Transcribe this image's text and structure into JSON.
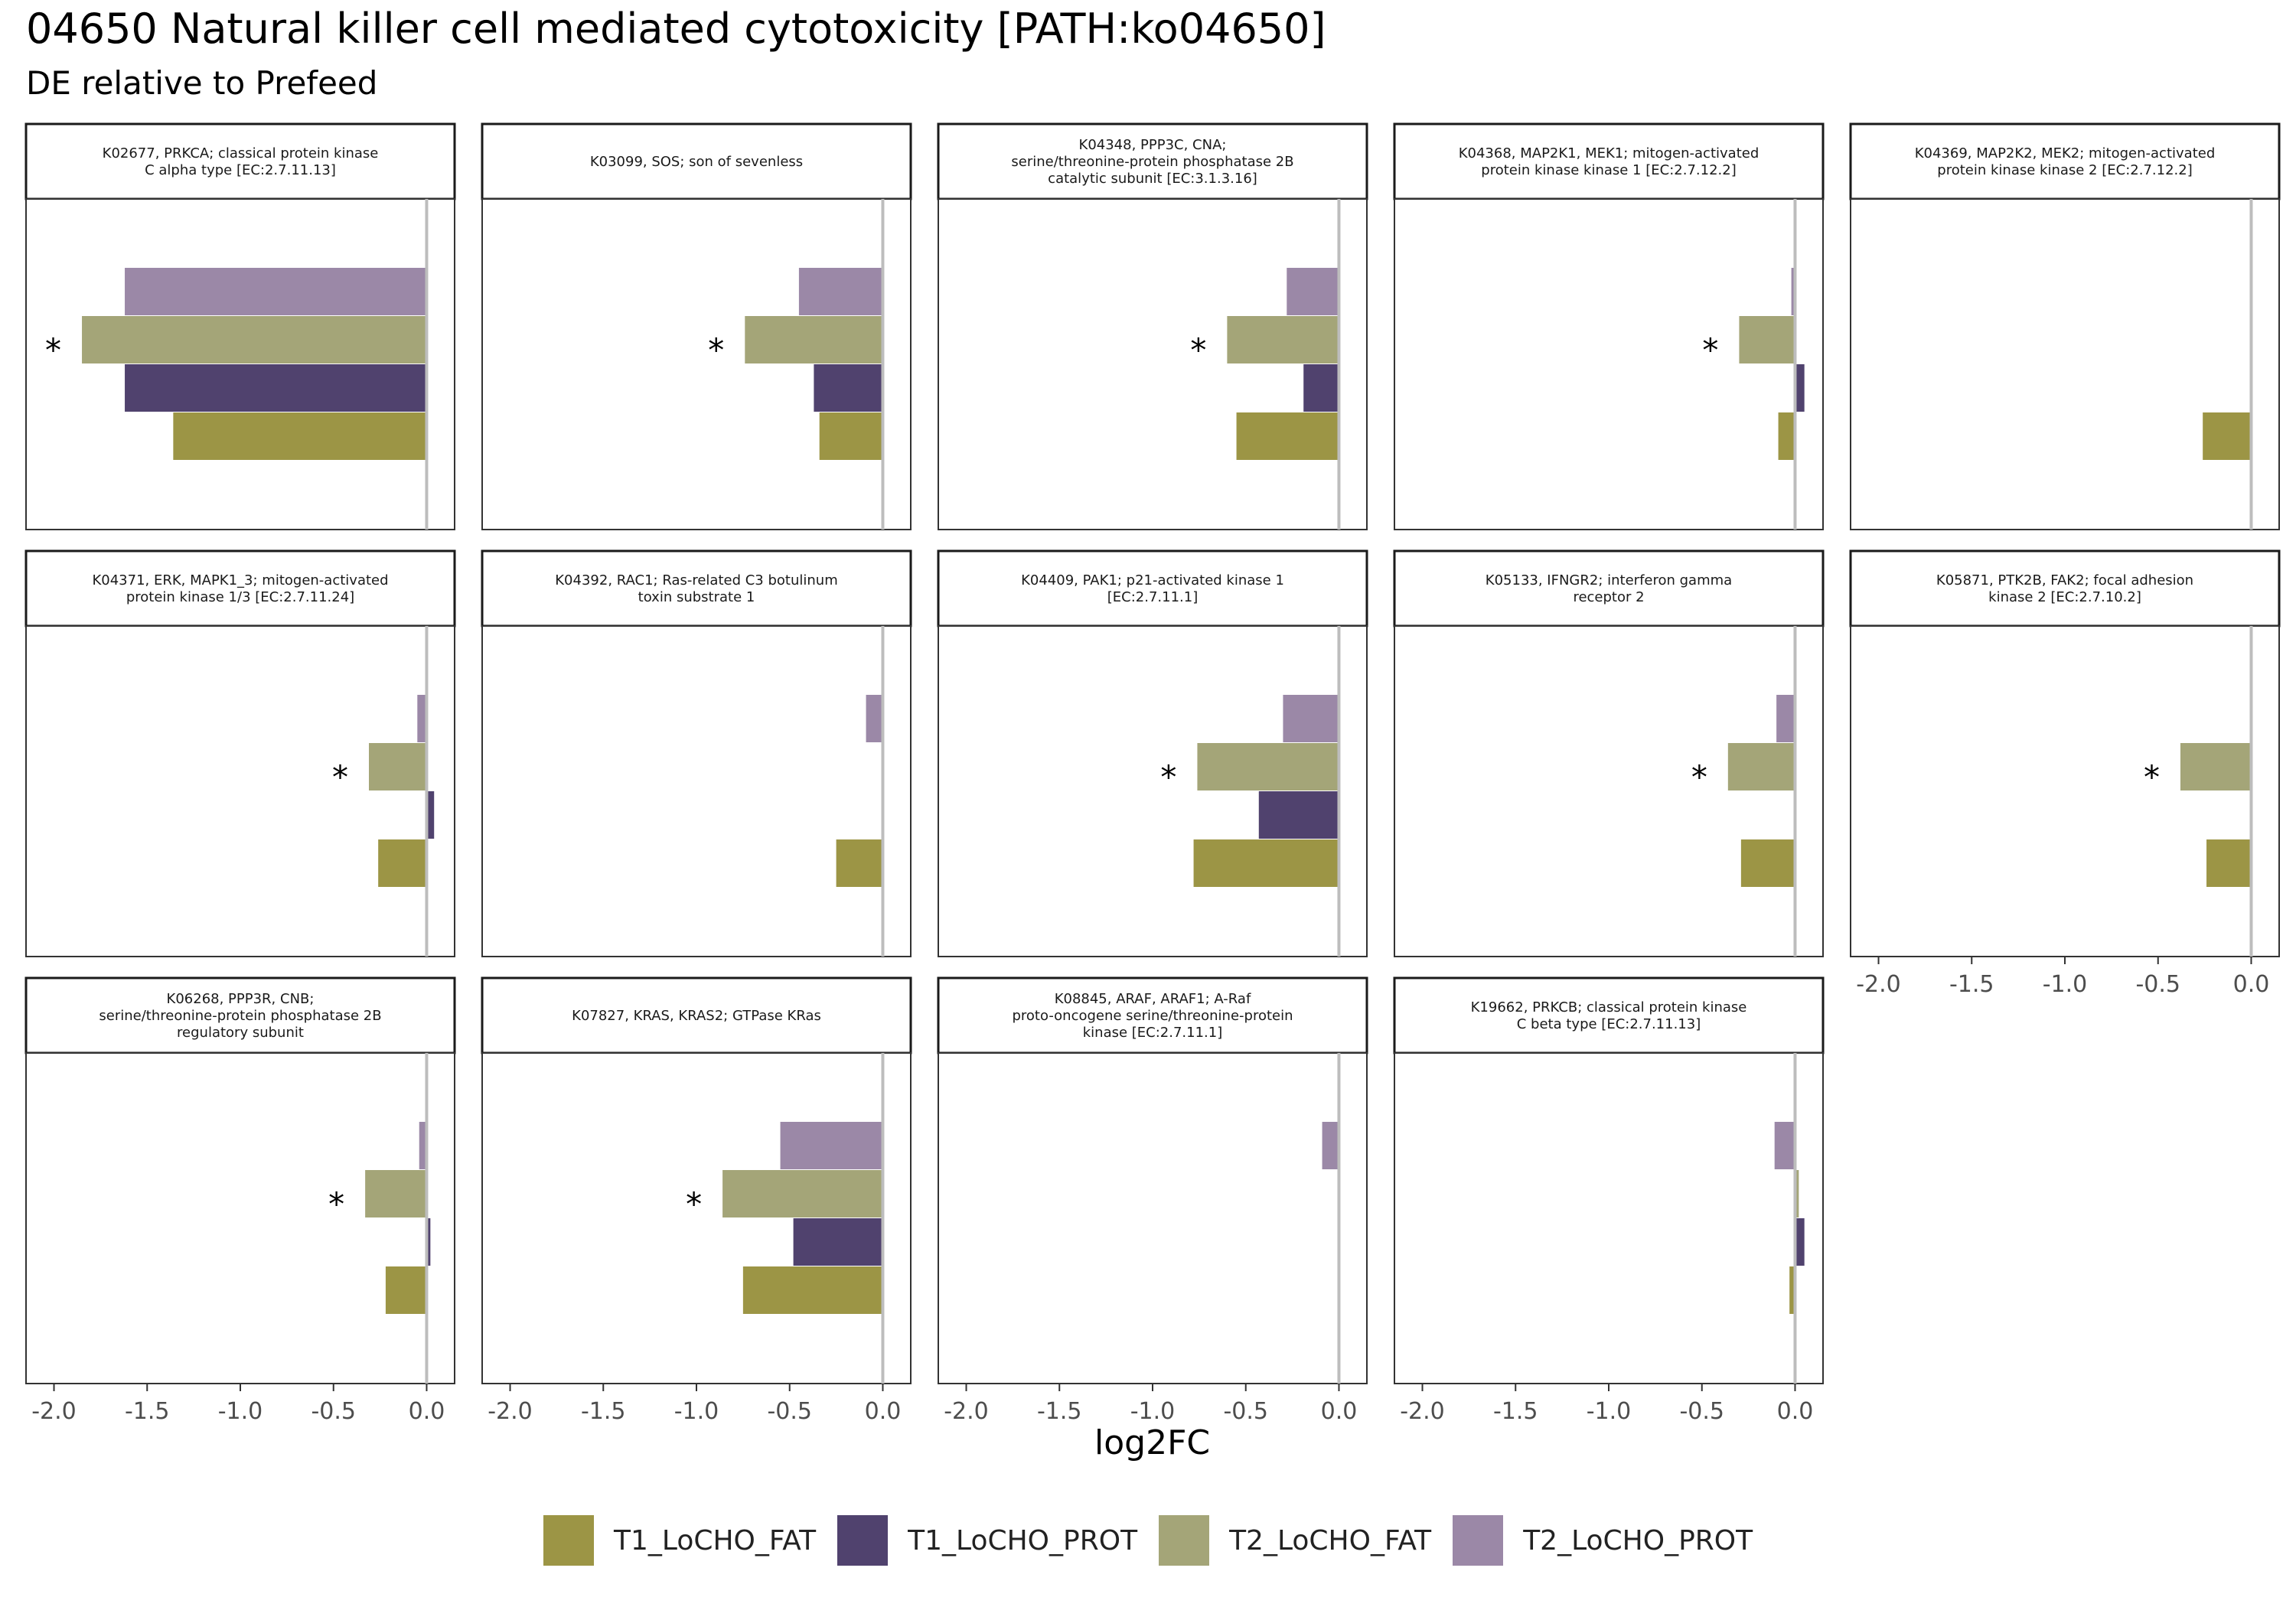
{
  "title": "04650 Natural killer cell mediated cytotoxicity [PATH:ko04650]",
  "subtitle": "DE relative to Prefeed",
  "chart_data": {
    "type": "bar",
    "orientation": "horizontal",
    "xlabel": "log2FC",
    "xlim": [
      -2.15,
      0.15
    ],
    "xticks": [
      -2.0,
      -1.5,
      -1.0,
      -0.5,
      0.0
    ],
    "xtick_labels": [
      "-2.0",
      "-1.5",
      "-1.0",
      "-0.5",
      "0.0"
    ],
    "reference_line": 0,
    "series": [
      {
        "name": "T1_LoCHO_FAT",
        "color": "#9C9545"
      },
      {
        "name": "T1_LoCHO_PROT",
        "color": "#50426E"
      },
      {
        "name": "T2_LoCHO_FAT",
        "color": "#A4A578"
      },
      {
        "name": "T2_LoCHO_PROT",
        "color": "#9B88A7"
      }
    ],
    "facets": [
      {
        "label": [
          "K02677, PRKCA; classical protein kinase",
          "C alpha type [EC:2.7.11.13]"
        ],
        "values": {
          "T2_LoCHO_PROT": -1.62,
          "T2_LoCHO_FAT": -1.85,
          "T1_LoCHO_PROT": -1.62,
          "T1_LoCHO_FAT": -1.36
        },
        "significant": "T2_LoCHO_FAT"
      },
      {
        "label": [
          "K03099, SOS; son of sevenless"
        ],
        "values": {
          "T2_LoCHO_PROT": -0.45,
          "T2_LoCHO_FAT": -0.74,
          "T1_LoCHO_PROT": -0.37,
          "T1_LoCHO_FAT": -0.34
        },
        "significant": "T2_LoCHO_FAT"
      },
      {
        "label": [
          "K04348, PPP3C, CNA;",
          "serine/threonine-protein phosphatase 2B",
          "catalytic subunit [EC:3.1.3.16]"
        ],
        "values": {
          "T2_LoCHO_PROT": -0.28,
          "T2_LoCHO_FAT": -0.6,
          "T1_LoCHO_PROT": -0.19,
          "T1_LoCHO_FAT": -0.55
        },
        "significant": "T2_LoCHO_FAT"
      },
      {
        "label": [
          "K04368, MAP2K1, MEK1; mitogen-activated",
          "protein kinase kinase 1 [EC:2.7.12.2]"
        ],
        "values": {
          "T2_LoCHO_PROT": -0.02,
          "T2_LoCHO_FAT": -0.3,
          "T1_LoCHO_PROT": 0.05,
          "T1_LoCHO_FAT": -0.09
        },
        "significant": "T2_LoCHO_FAT"
      },
      {
        "label": [
          "K04369, MAP2K2, MEK2; mitogen-activated",
          "protein kinase kinase 2 [EC:2.7.12.2]"
        ],
        "values": {
          "T2_LoCHO_PROT": null,
          "T2_LoCHO_FAT": null,
          "T1_LoCHO_PROT": null,
          "T1_LoCHO_FAT": -0.26
        },
        "significant": null
      },
      {
        "label": [
          "K04371, ERK, MAPK1_3; mitogen-activated",
          "protein kinase 1/3 [EC:2.7.11.24]"
        ],
        "values": {
          "T2_LoCHO_PROT": -0.05,
          "T2_LoCHO_FAT": -0.31,
          "T1_LoCHO_PROT": 0.04,
          "T1_LoCHO_FAT": -0.26
        },
        "significant": "T2_LoCHO_FAT"
      },
      {
        "label": [
          "K04392, RAC1; Ras-related C3 botulinum",
          "toxin substrate 1"
        ],
        "values": {
          "T2_LoCHO_PROT": -0.09,
          "T2_LoCHO_FAT": null,
          "T1_LoCHO_PROT": null,
          "T1_LoCHO_FAT": -0.25
        },
        "significant": null
      },
      {
        "label": [
          "K04409, PAK1; p21-activated kinase 1",
          "[EC:2.7.11.1]"
        ],
        "values": {
          "T2_LoCHO_PROT": -0.3,
          "T2_LoCHO_FAT": -0.76,
          "T1_LoCHO_PROT": -0.43,
          "T1_LoCHO_FAT": -0.78
        },
        "significant": "T2_LoCHO_FAT"
      },
      {
        "label": [
          "K05133, IFNGR2; interferon gamma",
          "receptor 2"
        ],
        "values": {
          "T2_LoCHO_PROT": -0.1,
          "T2_LoCHO_FAT": -0.36,
          "T1_LoCHO_PROT": null,
          "T1_LoCHO_FAT": -0.29
        },
        "significant": "T2_LoCHO_FAT"
      },
      {
        "label": [
          "K05871, PTK2B, FAK2; focal adhesion",
          "kinase 2 [EC:2.7.10.2]"
        ],
        "values": {
          "T2_LoCHO_PROT": null,
          "T2_LoCHO_FAT": -0.38,
          "T1_LoCHO_PROT": null,
          "T1_LoCHO_FAT": -0.24
        },
        "significant": "T2_LoCHO_FAT"
      },
      {
        "label": [
          "K06268, PPP3R, CNB;",
          "serine/threonine-protein phosphatase 2B",
          "regulatory subunit"
        ],
        "values": {
          "T2_LoCHO_PROT": -0.04,
          "T2_LoCHO_FAT": -0.33,
          "T1_LoCHO_PROT": 0.02,
          "T1_LoCHO_FAT": -0.22
        },
        "significant": "T2_LoCHO_FAT"
      },
      {
        "label": [
          "K07827, KRAS, KRAS2; GTPase KRas"
        ],
        "values": {
          "T2_LoCHO_PROT": -0.55,
          "T2_LoCHO_FAT": -0.86,
          "T1_LoCHO_PROT": -0.48,
          "T1_LoCHO_FAT": -0.75
        },
        "significant": "T2_LoCHO_FAT"
      },
      {
        "label": [
          "K08845, ARAF, ARAF1; A-Raf",
          "proto-oncogene serine/threonine-protein",
          "kinase [EC:2.7.11.1]"
        ],
        "values": {
          "T2_LoCHO_PROT": -0.09,
          "T2_LoCHO_FAT": null,
          "T1_LoCHO_PROT": null,
          "T1_LoCHO_FAT": null
        },
        "significant": null
      },
      {
        "label": [
          "K19662, PRKCB; classical protein kinase",
          "C beta type [EC:2.7.11.13]"
        ],
        "values": {
          "T2_LoCHO_PROT": -0.11,
          "T2_LoCHO_FAT": 0.02,
          "T1_LoCHO_PROT": 0.05,
          "T1_LoCHO_FAT": -0.03
        },
        "significant": null
      }
    ],
    "significance_symbol": "*",
    "legend_position": "bottom",
    "grid": false
  }
}
